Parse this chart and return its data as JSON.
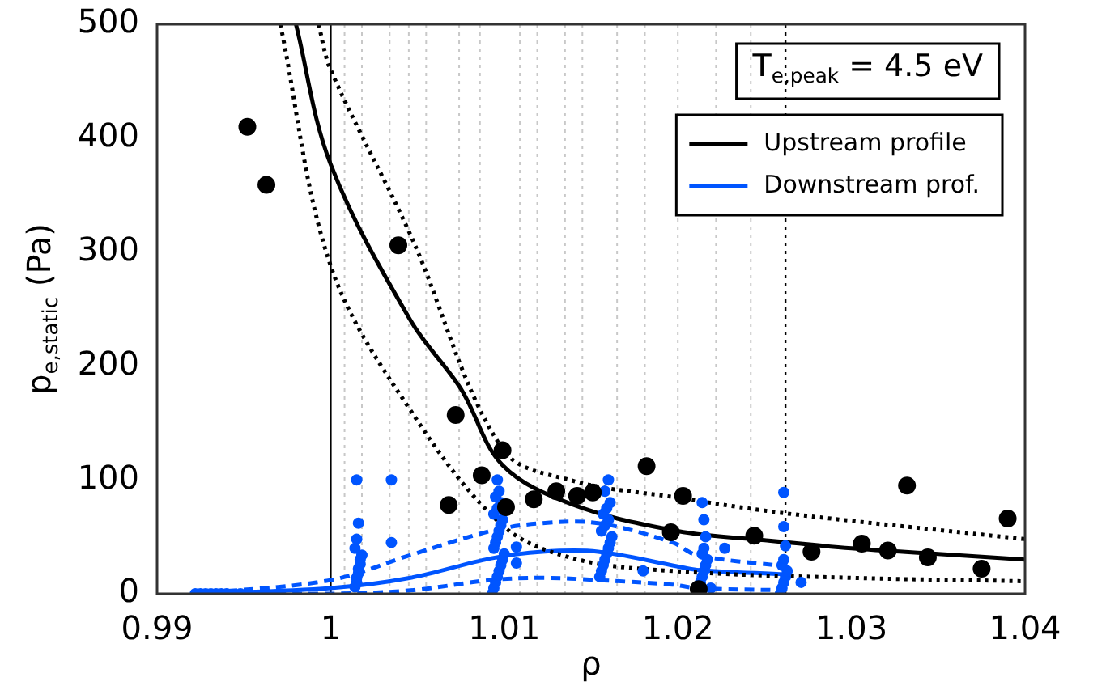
{
  "chart_data": {
    "type": "scatter",
    "xlabel": "ρ",
    "ylabel": "p$_{e,static}$ (Pa)",
    "annotations": [
      "T$_{e,peak}$ = 4.5 eV"
    ],
    "legend": "top right",
    "xlim": [
      0.99,
      1.04
    ],
    "xticks": [
      0.99,
      1,
      1.01,
      1.02,
      1.03,
      1.04
    ],
    "ylim": [
      0,
      500
    ],
    "yticks": [
      0,
      100,
      200,
      300,
      400,
      500
    ],
    "ref_lines": [
      {
        "axis": "x",
        "value": 1,
        "color": "#000000",
        "line_style": "solid"
      },
      {
        "axis": "x",
        "value": 1.0262,
        "color": "#000000",
        "line_style": "dotted"
      },
      {
        "axis": "x",
        "value": 1.0008,
        "color": "#c8c8c8",
        "line_style": "dotted"
      },
      {
        "axis": "x",
        "value": 1.0018,
        "color": "#c8c8c8",
        "line_style": "dotted"
      },
      {
        "axis": "x",
        "value": 1.0034,
        "color": "#c8c8c8",
        "line_style": "dotted"
      },
      {
        "axis": "x",
        "value": 1.0045,
        "color": "#c8c8c8",
        "line_style": "dotted"
      },
      {
        "axis": "x",
        "value": 1.0055,
        "color": "#c8c8c8",
        "line_style": "dotted"
      },
      {
        "axis": "x",
        "value": 1.0074,
        "color": "#c8c8c8",
        "line_style": "dotted"
      },
      {
        "axis": "x",
        "value": 1.0086,
        "color": "#c8c8c8",
        "line_style": "dotted"
      },
      {
        "axis": "x",
        "value": 1.0109,
        "color": "#c8c8c8",
        "line_style": "dotted"
      },
      {
        "axis": "x",
        "value": 1.0119,
        "color": "#c8c8c8",
        "line_style": "dotted"
      },
      {
        "axis": "x",
        "value": 1.0135,
        "color": "#c8c8c8",
        "line_style": "dotted"
      },
      {
        "axis": "x",
        "value": 1.0145,
        "color": "#c8c8c8",
        "line_style": "dotted"
      },
      {
        "axis": "x",
        "value": 1.0165,
        "color": "#c8c8c8",
        "line_style": "dotted"
      },
      {
        "axis": "x",
        "value": 1.0181,
        "color": "#c8c8c8",
        "line_style": "dotted"
      },
      {
        "axis": "x",
        "value": 1.02,
        "color": "#c8c8c8",
        "line_style": "dotted"
      },
      {
        "axis": "x",
        "value": 1.0222,
        "color": "#c8c8c8",
        "line_style": "dotted"
      },
      {
        "axis": "x",
        "value": 1.0242,
        "color": "#c8c8c8",
        "line_style": "dotted"
      }
    ],
    "series": [
      {
        "type": "scatter",
        "color": "#0055ff",
        "marker": "circle",
        "x": [
          0.9922,
          0.9925,
          0.9928,
          0.9931,
          0.9934,
          0.9937,
          0.994,
          0.9948,
          1.0014,
          1.0015,
          1.0015,
          1.0016,
          1.0016,
          1.0017,
          1.0017,
          1.0018,
          1.0014,
          1.0015,
          1.0016,
          1.0015,
          1.0035,
          1.0035,
          1.0093,
          1.0094,
          1.0095,
          1.0096,
          1.0097,
          1.0098,
          1.0099,
          1.01,
          1.0094,
          1.0095,
          1.0096,
          1.0097,
          1.0098,
          1.0099,
          1.0094,
          1.0096,
          1.0098,
          1.0095,
          1.0097,
          1.0096,
          1.0107,
          1.0107,
          1.0155,
          1.0156,
          1.0157,
          1.0158,
          1.0159,
          1.016,
          1.0161,
          1.0162,
          1.0156,
          1.0158,
          1.016,
          1.0157,
          1.0159,
          1.0161,
          1.0158,
          1.016,
          1.018,
          1.0219,
          1.0213,
          1.0214,
          1.0215,
          1.0216,
          1.0217,
          1.0214,
          1.0215,
          1.0216,
          1.0215,
          1.0214,
          1.0227,
          1.0259,
          1.026,
          1.0261,
          1.0262,
          1.0263,
          1.026,
          1.0261,
          1.0262,
          1.0261,
          1.0261,
          1.0271
        ],
        "values": [
          0,
          0,
          0,
          0,
          0,
          0,
          0,
          0,
          6,
          10,
          14,
          18,
          22,
          26,
          30,
          34,
          40,
          48,
          62,
          100,
          100,
          45,
          0,
          5,
          10,
          15,
          20,
          25,
          30,
          35,
          40,
          45,
          50,
          55,
          60,
          65,
          70,
          75,
          80,
          85,
          90,
          100,
          41,
          27,
          15,
          20,
          25,
          30,
          35,
          40,
          45,
          50,
          55,
          60,
          65,
          70,
          75,
          80,
          90,
          100,
          20,
          5,
          10,
          15,
          20,
          25,
          30,
          35,
          40,
          50,
          65,
          80,
          40,
          0,
          5,
          10,
          15,
          20,
          25,
          30,
          42,
          59,
          89,
          10
        ]
      },
      {
        "type": "scatter",
        "color": "#000000",
        "marker": "circle",
        "x": [
          0.9952,
          0.9963,
          1.0039,
          1.0072,
          1.0068,
          1.0087,
          1.0099,
          1.0101,
          1.0117,
          1.013,
          1.0142,
          1.0151,
          1.0182,
          1.0196,
          1.0203,
          1.0212,
          1.0244,
          1.0277,
          1.0306,
          1.0321,
          1.0332,
          1.0344,
          1.0375,
          1.039
        ],
        "values": [
          410,
          359,
          306,
          157,
          78,
          104,
          126,
          76,
          83,
          90,
          86,
          89,
          112,
          54,
          86,
          4,
          51,
          37,
          44,
          38,
          95,
          32,
          22,
          66
        ]
      },
      {
        "type": "line",
        "name": "Upstream profile",
        "color": "#000000",
        "marker": "none",
        "line_style": "solid",
        "x": [
          0.998,
          1,
          1.0046,
          1.0075,
          1.0099,
          1.014,
          1.02,
          1.025,
          1.03,
          1.035,
          1.04
        ],
        "values": [
          500,
          377,
          240,
          180,
          113,
          78,
          55,
          47,
          40,
          35,
          30
        ]
      },
      {
        "type": "line",
        "color": "#000000",
        "marker": "none",
        "line_style": "dotted",
        "x": [
          0.9993,
          1,
          1.0046,
          1.0099,
          1.014,
          1.0197,
          1.025,
          1.03,
          1.035,
          1.04
        ],
        "values": [
          500,
          460,
          315,
          127,
          99,
          85,
          73,
          64,
          56,
          48
        ]
      },
      {
        "type": "line",
        "color": "#000000",
        "marker": "none",
        "line_style": "dotted",
        "x": [
          0.9971,
          1,
          1.0046,
          1.0099,
          1.014,
          1.0197,
          1.03,
          1.04
        ],
        "values": [
          500,
          288,
          161,
          60,
          31,
          20,
          14,
          11
        ]
      },
      {
        "type": "line",
        "name": "Downstream prof.",
        "color": "#0055ff",
        "marker": "none",
        "line_style": "solid",
        "x": [
          0.9922,
          1,
          1.0046,
          1.0092,
          1.0122,
          1.0154,
          1.02,
          1.0211,
          1.0262
        ],
        "values": [
          0,
          5,
          14,
          31,
          37,
          37,
          24,
          21,
          17
        ]
      },
      {
        "type": "line",
        "color": "#0055ff",
        "marker": "none",
        "line_style": "dashed",
        "x": [
          0.9922,
          1,
          1.0046,
          1.0092,
          1.0122,
          1.0154,
          1.0197,
          1.0211,
          1.0262
        ],
        "values": [
          0,
          12,
          34,
          55,
          62,
          62,
          45,
          34,
          24
        ]
      },
      {
        "type": "line",
        "color": "#0055ff",
        "marker": "none",
        "line_style": "dashed",
        "x": [
          0.9922,
          1,
          1.0046,
          1.0092,
          1.0122,
          1.0154,
          1.0197,
          1.0211,
          1.0262
        ],
        "values": [
          0,
          0,
          3,
          12,
          14,
          12,
          8,
          5,
          3
        ]
      }
    ]
  }
}
